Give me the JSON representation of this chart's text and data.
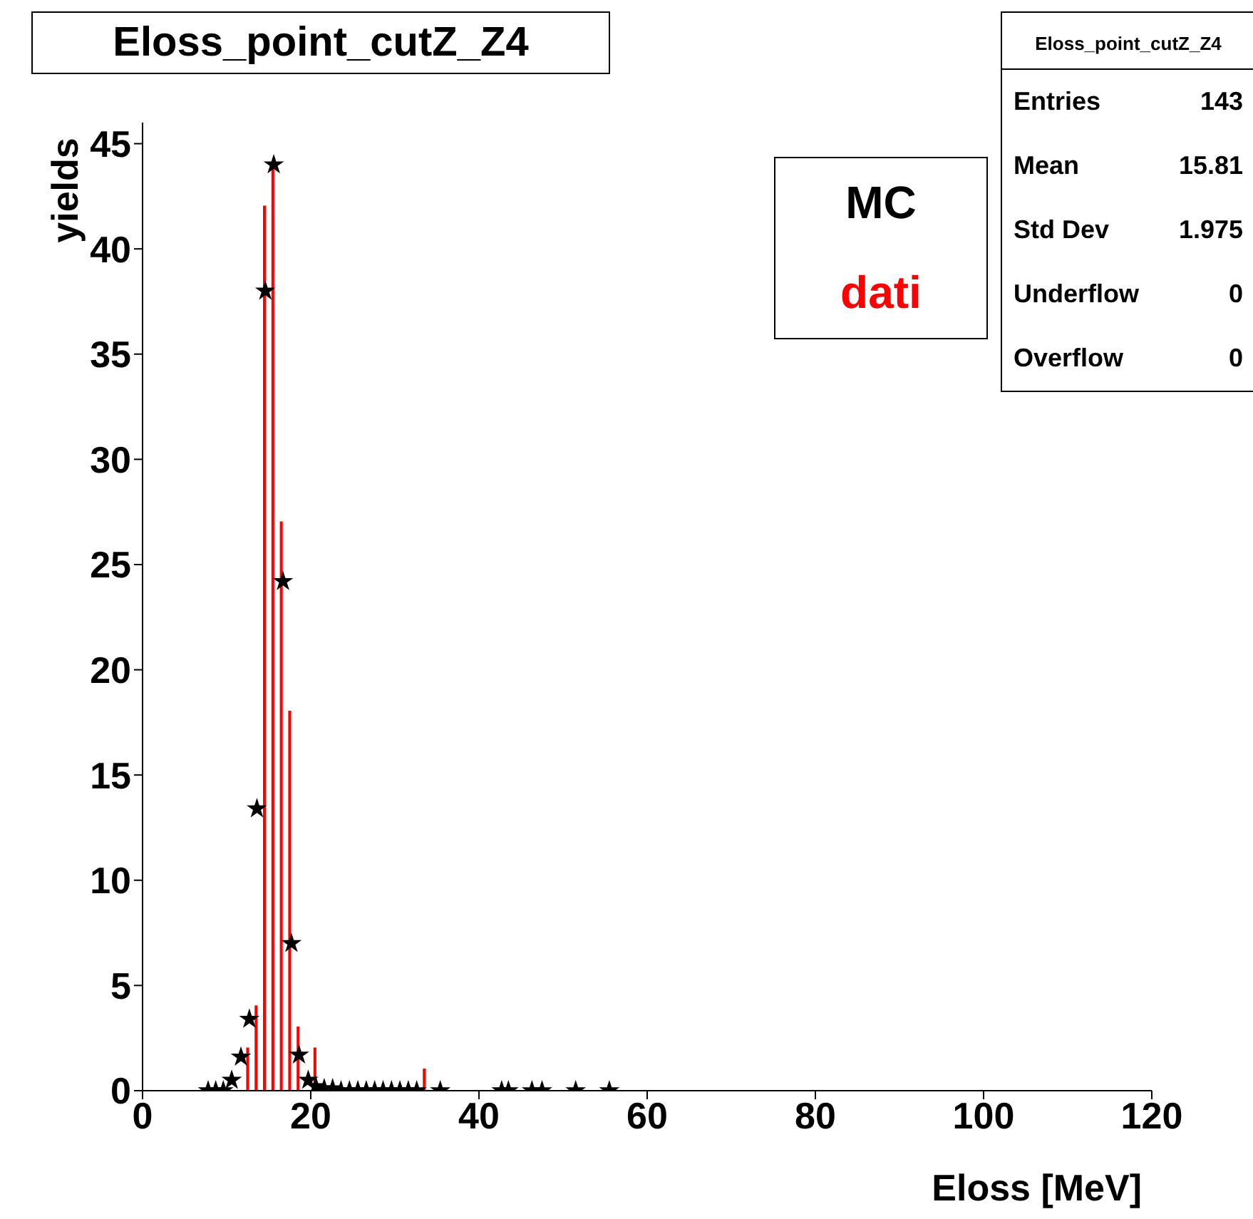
{
  "chart_data": {
    "type": "histogram",
    "title": "Eloss_point_cutZ_Z4",
    "xlabel": "Eloss [MeV]",
    "ylabel": "yields",
    "xlim": [
      0,
      120
    ],
    "xticks": [
      0,
      20,
      40,
      60,
      80,
      100,
      120
    ],
    "ylim": [
      0,
      46
    ],
    "yticks": [
      0,
      5,
      10,
      15,
      20,
      25,
      30,
      35,
      40,
      45
    ],
    "grid": false,
    "legend": "top right",
    "series": [
      {
        "type": "scatter",
        "name": "MC",
        "color": "#000000",
        "marker": "star",
        "x": [
          7.8,
          8.7,
          9.6,
          10.6,
          11.7,
          12.7,
          13.6,
          14.6,
          15.6,
          16.7,
          17.7,
          18.6,
          19.7,
          20.6,
          21.6,
          22.6,
          23.6,
          24.6,
          25.6,
          26.6,
          27.6,
          28.6,
          29.6,
          30.6,
          31.6,
          32.6,
          35.4,
          42.7,
          43.5,
          46.3,
          47.5,
          51.5,
          55.5
        ],
        "values": [
          0,
          0,
          0,
          0.5,
          1.6,
          3.4,
          13.4,
          38,
          44,
          24.2,
          7,
          1.7,
          0.5,
          0.2,
          0.1,
          0.1,
          0,
          0,
          0,
          0,
          0,
          0,
          0,
          0,
          0,
          0,
          0,
          0,
          0,
          0,
          0,
          0,
          0
        ]
      },
      {
        "name": "dati",
        "color": "#ff0000",
        "bins": [
          12,
          13,
          14,
          15,
          16,
          17,
          18,
          19,
          20,
          21,
          22,
          23,
          24,
          25,
          26,
          27,
          28,
          29,
          30,
          31,
          32,
          33,
          34
        ],
        "values": [
          2,
          4,
          42,
          44,
          27,
          18,
          3,
          0,
          2,
          0,
          0,
          0,
          0,
          0,
          0,
          0,
          0,
          0,
          0,
          0,
          0,
          1
        ]
      }
    ],
    "annotations": [
      "Eloss_point_cutZ_Z4",
      "Entries 143",
      "Mean 15.81",
      "Std Dev 1.975",
      "Underflow 0",
      "Overflow 0"
    ]
  }
}
